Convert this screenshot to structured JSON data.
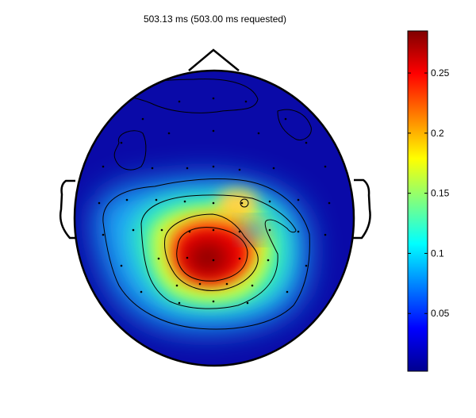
{
  "chart_data": {
    "type": "heatmap",
    "title": "503.13 ms (503.00 ms requested)",
    "colorbar": {
      "range": [
        0.002,
        0.285
      ],
      "ticks": [
        0.05,
        0.1,
        0.15,
        0.2,
        0.25
      ],
      "tick_labels": [
        "0.05",
        "0.1",
        "0.15",
        "0.2",
        "0.25"
      ],
      "colormap": "jet"
    },
    "peak_value": 0.285,
    "contours": true,
    "electrodes_shown": true
  }
}
